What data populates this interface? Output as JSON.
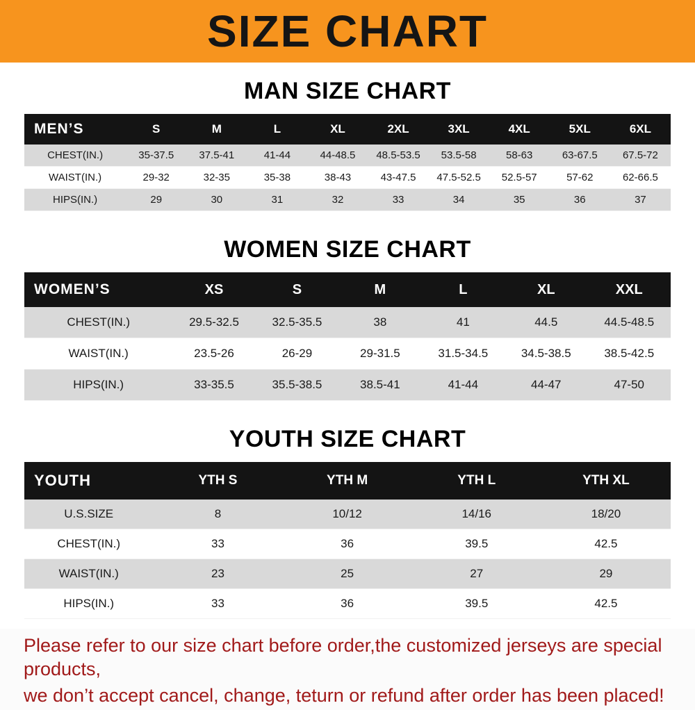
{
  "banner": {
    "title": "SIZE CHART"
  },
  "colors": {
    "banner_bg": "#f7941e",
    "table_header_bg": "#141414",
    "row_alt_bg": "#d9d9d9",
    "footer_text": "#a11a1a"
  },
  "sections": {
    "men": {
      "heading": "MAN SIZE CHART",
      "table": {
        "header": [
          "MEN’S",
          "S",
          "M",
          "L",
          "XL",
          "2XL",
          "3XL",
          "4XL",
          "5XL",
          "6XL"
        ],
        "rows": [
          [
            "CHEST(IN.)",
            "35-37.5",
            "37.5-41",
            "41-44",
            "44-48.5",
            "48.5-53.5",
            "53.5-58",
            "58-63",
            "63-67.5",
            "67.5-72"
          ],
          [
            "WAIST(IN.)",
            "29-32",
            "32-35",
            "35-38",
            "38-43",
            "43-47.5",
            "47.5-52.5",
            "52.5-57",
            "57-62",
            "62-66.5"
          ],
          [
            "HIPS(IN.)",
            "29",
            "30",
            "31",
            "32",
            "33",
            "34",
            "35",
            "36",
            "37"
          ]
        ]
      }
    },
    "women": {
      "heading": "WOMEN SIZE CHART",
      "table": {
        "header": [
          "WOMEN’S",
          "XS",
          "S",
          "M",
          "L",
          "XL",
          "XXL"
        ],
        "rows": [
          [
            "CHEST(IN.)",
            "29.5-32.5",
            "32.5-35.5",
            "38",
            "41",
            "44.5",
            "44.5-48.5"
          ],
          [
            "WAIST(IN.)",
            "23.5-26",
            "26-29",
            "29-31.5",
            "31.5-34.5",
            "34.5-38.5",
            "38.5-42.5"
          ],
          [
            "HIPS(IN.)",
            "33-35.5",
            "35.5-38.5",
            "38.5-41",
            "41-44",
            "44-47",
            "47-50"
          ]
        ]
      }
    },
    "youth": {
      "heading": "YOUTH SIZE CHART",
      "table": {
        "header": [
          "YOUTH",
          "YTH S",
          "YTH M",
          "YTH L",
          "YTH XL"
        ],
        "rows": [
          [
            "U.S.SIZE",
            "8",
            "10/12",
            "14/16",
            "18/20"
          ],
          [
            "CHEST(IN.)",
            "33",
            "36",
            "39.5",
            "42.5"
          ],
          [
            "WAIST(IN.)",
            "23",
            "25",
            "27",
            "29"
          ],
          [
            "HIPS(IN.)",
            "33",
            "36",
            "39.5",
            "42.5"
          ]
        ]
      }
    }
  },
  "footer": {
    "line1": "Please refer to our size chart before order,the customized jerseys are special products,",
    "line2": "we don’t accept cancel, change, teturn or refund after order has been placed!"
  }
}
